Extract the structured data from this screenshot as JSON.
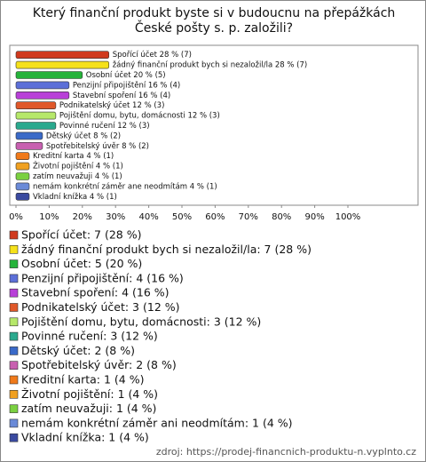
{
  "chart_data": {
    "type": "bar",
    "orientation": "horizontal",
    "title": "Který finanční produkt byste si v budoucnu na přepážkách České pošty s. p. založili?",
    "values": [
      28,
      28,
      20,
      16,
      16,
      12,
      12,
      12,
      8,
      8,
      4,
      4,
      4,
      4,
      4
    ],
    "value_labels": [
      "Spořící účet 28 % (7)",
      "žádný finanční produkt bych si nezaložil/la 28 % (7)",
      "Osobní účet 20 % (5)",
      "Penzijní připojištění 16 % (4)",
      "Stavební spoření 16 % (4)",
      "Podnikatelský účet 12 % (3)",
      "Pojištění domu, bytu, domácnosti 12 % (3)",
      "Povinné ručení 12 % (3)",
      "Dětský účet 8 % (2)",
      "Spotřebitelský úvěr 8 % (2)",
      "Kreditní karta 4 % (1)",
      "Životní pojištění 4 % (1)",
      "zatím neuvažuji 4 % (1)",
      "nemám konkrétní záměr ane neodmítám 4 % (1)",
      "Vkladní knížka 4 % (1)"
    ],
    "legend_labels": [
      "Spořící účet: 7 (28 %)",
      "žádný finanční produkt bych si nezaložil/la: 7 (28 %)",
      "Osobní účet: 5 (20 %)",
      "Penzijní připojištění: 4 (16 %)",
      "Stavební spoření: 4 (16 %)",
      "Podnikatelský účet: 3 (12 %)",
      "Pojištění domu, bytu, domácnosti: 3 (12 %)",
      "Povinné ručení: 3 (12 %)",
      "Dětský účet: 2 (8 %)",
      "Spotřebitelský úvěr: 2 (8 %)",
      "Kreditní karta: 1 (4 %)",
      "Životní pojištění: 1 (4 %)",
      "zatím neuvažuji: 1 (4 %)",
      "nemám konkrétní záměr ani neodmítám: 1 (4 %)",
      "Vkladní knížka: 1 (4 %)"
    ],
    "colors": [
      "#d03a1e",
      "#f5e11a",
      "#25b33a",
      "#5c6fd8",
      "#b840d8",
      "#e0582a",
      "#b6e86a",
      "#2aa98e",
      "#3a6ac8",
      "#c860b0",
      "#f07a1a",
      "#f0a020",
      "#7ad040",
      "#6a8ad8",
      "#3a4aa0"
    ],
    "xlim": [
      0,
      100
    ],
    "xticks": [
      {
        "value": 0,
        "label": "0%"
      },
      {
        "value": 10,
        "label": "10%"
      },
      {
        "value": 20,
        "label": "20%"
      },
      {
        "value": 30,
        "label": "30%"
      },
      {
        "value": 40,
        "label": "40%"
      },
      {
        "value": 50,
        "label": "50%"
      },
      {
        "value": 60,
        "label": "60%"
      },
      {
        "value": 70,
        "label": "70%"
      },
      {
        "value": 80,
        "label": "80%"
      },
      {
        "value": 90,
        "label": "90%"
      },
      {
        "value": 100,
        "label": "100%"
      }
    ],
    "source": "zdroj: https://prodej-financnich-produktu-n.vyplnto.cz"
  }
}
